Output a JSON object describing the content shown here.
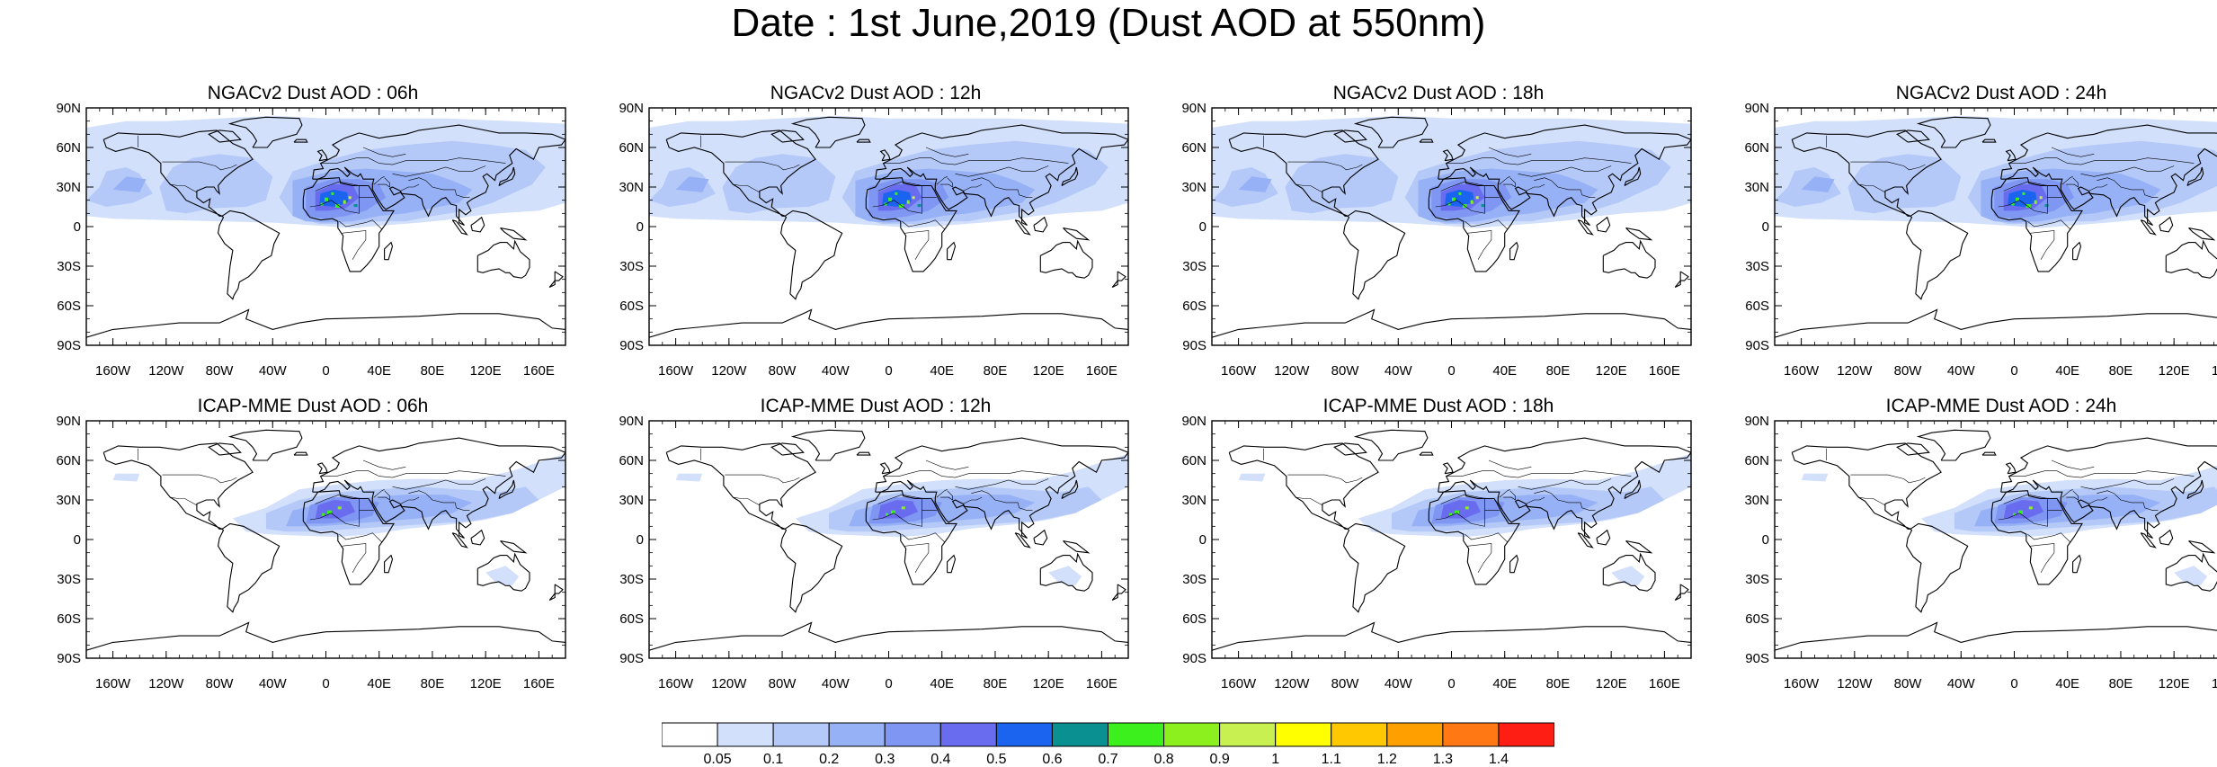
{
  "title": "Date : 1st June,2019 (Dust AOD at 550nm)",
  "lat_labels": [
    "90N",
    "60N",
    "30N",
    "0",
    "30S",
    "60S",
    "90S"
  ],
  "lon_labels": [
    "160W",
    "120W",
    "80W",
    "40W",
    "0",
    "40E",
    "80E",
    "120E",
    "160E"
  ],
  "panels": [
    {
      "title": "NGACv2 Dust AOD : 06h",
      "model": "NGACv2",
      "forecast_hour": "06h"
    },
    {
      "title": "NGACv2 Dust AOD : 12h",
      "model": "NGACv2",
      "forecast_hour": "12h"
    },
    {
      "title": "NGACv2 Dust AOD : 18h",
      "model": "NGACv2",
      "forecast_hour": "18h"
    },
    {
      "title": "NGACv2 Dust AOD : 24h",
      "model": "NGACv2",
      "forecast_hour": "24h"
    },
    {
      "title": "ICAP-MME Dust AOD : 06h",
      "model": "ICAP-MME",
      "forecast_hour": "06h"
    },
    {
      "title": "ICAP-MME Dust AOD : 12h",
      "model": "ICAP-MME",
      "forecast_hour": "12h"
    },
    {
      "title": "ICAP-MME Dust AOD : 18h",
      "model": "ICAP-MME",
      "forecast_hour": "18h"
    },
    {
      "title": "ICAP-MME Dust AOD : 24h",
      "model": "ICAP-MME",
      "forecast_hour": "24h"
    }
  ],
  "colorbar": {
    "labels": [
      "0.05",
      "0.1",
      "0.2",
      "0.3",
      "0.4",
      "0.5",
      "0.6",
      "0.7",
      "0.8",
      "0.9",
      "1",
      "1.1",
      "1.2",
      "1.3",
      "1.4"
    ],
    "colors": [
      "#ffffff",
      "#d2e0fb",
      "#b4c9f8",
      "#96b1f5",
      "#7f96f2",
      "#6a6cf0",
      "#1a64f0",
      "#0a9090",
      "#3cf01e",
      "#8cf01e",
      "#c8f050",
      "#ffff00",
      "#ffc800",
      "#ffa000",
      "#ff7814",
      "#ff1e14"
    ]
  }
}
